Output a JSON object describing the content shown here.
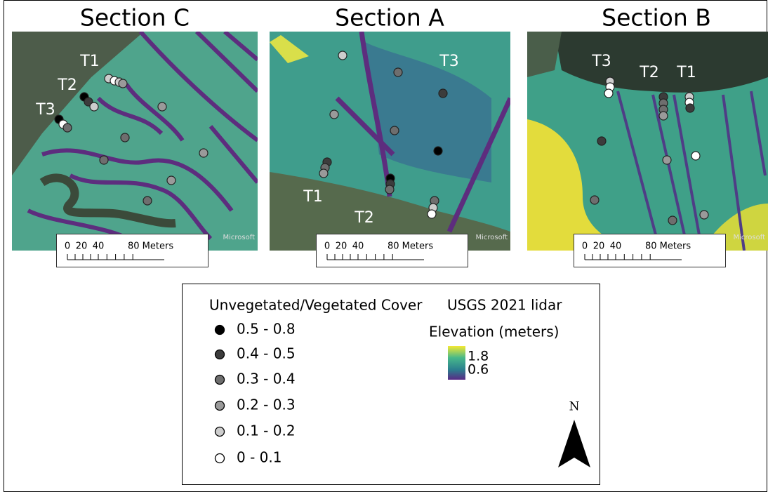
{
  "sections": [
    {
      "title": "Section C",
      "transects": [
        "T1",
        "T2",
        "T3"
      ],
      "attribution": "Microsoft",
      "scale_labels": [
        "0",
        "20",
        "40",
        "80 Meters"
      ]
    },
    {
      "title": "Section A",
      "transects": [
        "T3",
        "T1",
        "T2"
      ],
      "attribution": "Microsoft",
      "scale_labels": [
        "0",
        "20",
        "40",
        "80 Meters"
      ]
    },
    {
      "title": "Section B",
      "transects": [
        "T3",
        "T2",
        "T1"
      ],
      "attribution": "Microsoft",
      "scale_labels": [
        "0",
        "20",
        "40",
        "80 Meters"
      ]
    }
  ],
  "legend": {
    "cover_title": "Unvegetated/Vegetated Cover",
    "cover_classes": [
      {
        "label": "0.5 - 0.8",
        "color": "#000000"
      },
      {
        "label": "0.4 - 0.5",
        "color": "#3c3c3c"
      },
      {
        "label": "0.3 - 0.4",
        "color": "#6e6e6e"
      },
      {
        "label": "0.2 - 0.3",
        "color": "#9a9a9a"
      },
      {
        "label": "0.1 - 0.2",
        "color": "#cdcdcd"
      },
      {
        "label": "0 - 0.1",
        "color": "#ffffff"
      }
    ],
    "lidar_title": "USGS 2021 lidar",
    "elevation_title": "Elevation (meters)",
    "elevation_labels": [
      "1.8",
      "0.6"
    ]
  },
  "north": "N"
}
